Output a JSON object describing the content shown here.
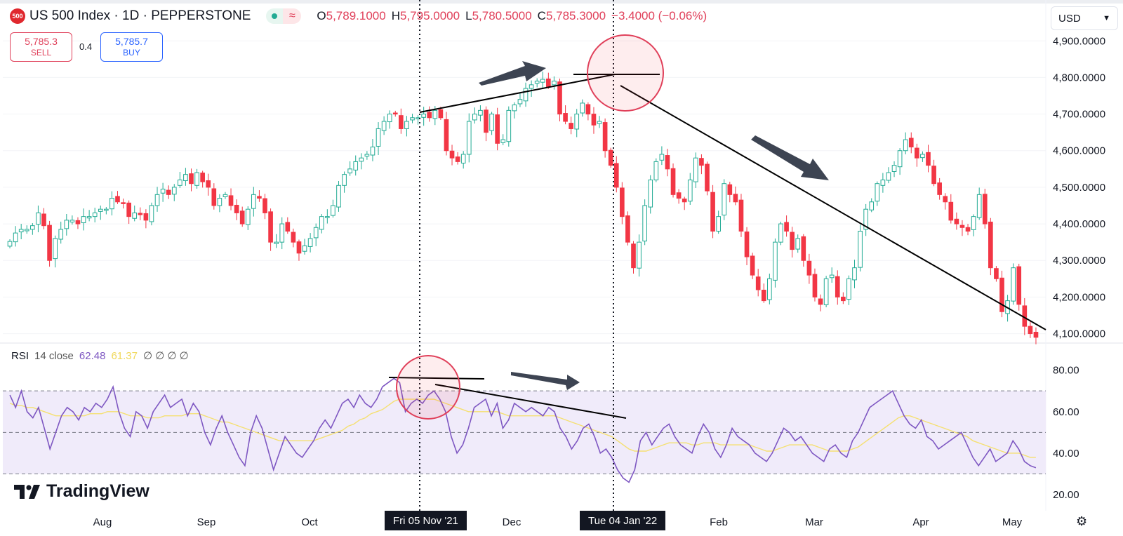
{
  "header": {
    "logo_text": "500",
    "title": "US 500 Index · 1D · PEPPERSTONE",
    "ohlc": [
      {
        "k": "O",
        "v": "5,789.1000"
      },
      {
        "k": "H",
        "v": "5,795.0000"
      },
      {
        "k": "L",
        "v": "5,780.5000"
      },
      {
        "k": "C",
        "v": "5,785.3000"
      }
    ],
    "change": "−3.4000 (−0.06%)",
    "flag_icon": "≈"
  },
  "trade": {
    "sell_price": "5,785.3",
    "sell_label": "SELL",
    "spread": "0.4",
    "buy_price": "5,785.7",
    "buy_label": "BUY"
  },
  "currency": {
    "label": "USD",
    "icon": "chevron-down-icon"
  },
  "rsi_legend": {
    "name": "RSI",
    "params": "14 close",
    "rsi_value": "62.48",
    "ma_value": "61.37",
    "empty": "∅ ∅ ∅ ∅"
  },
  "brand": {
    "text": "TradingView"
  },
  "x_labels": [
    "Aug",
    "Sep",
    "Oct",
    "Dec",
    "Feb",
    "Mar",
    "Apr",
    "May"
  ],
  "crosshair_labels": [
    "Fri 05 Nov '21",
    "Tue 04 Jan '22"
  ],
  "colors": {
    "up": "#22ab94",
    "down": "#f23645",
    "rsi": "#7e57c2",
    "rsi_ma": "#f5e071",
    "band": "#f0ebfa"
  },
  "chart_data": [
    {
      "type": "candlestick",
      "title": "US 500 Index · 1D · PEPPERSTONE",
      "ylim": [
        4080,
        4935
      ],
      "y_ticks": [
        "4,900.0000",
        "4,800.0000",
        "4,700.0000",
        "4,600.0000",
        "4,500.0000",
        "4,400.0000",
        "4,300.0000",
        "4,200.0000",
        "4,100.0000"
      ],
      "closes_approx": [
        4352,
        4375,
        4385,
        4385,
        4395,
        4430,
        4395,
        4300,
        4360,
        4385,
        4410,
        4410,
        4400,
        4420,
        4420,
        4430,
        4440,
        4440,
        4470,
        4460,
        4455,
        4420,
        4430,
        4425,
        4410,
        4450,
        4480,
        4495,
        4480,
        4500,
        4520,
        4535,
        4510,
        4540,
        4515,
        4500,
        4450,
        4470,
        4480,
        4450,
        4430,
        4400,
        4440,
        4480,
        4470,
        4430,
        4350,
        4350,
        4400,
        4380,
        4350,
        4320,
        4340,
        4360,
        4390,
        4420,
        4420,
        4450,
        4505,
        4535,
        4550,
        4570,
        4580,
        4590,
        4610,
        4660,
        4680,
        4700,
        4700,
        4660,
        4680,
        4690,
        4690,
        4700,
        4690,
        4710,
        4690,
        4600,
        4580,
        4570,
        4590,
        4680,
        4700,
        4710,
        4650,
        4700,
        4620,
        4630,
        4710,
        4725,
        4740,
        4770,
        4780,
        4790,
        4795,
        4775,
        4790,
        4700,
        4680,
        4660,
        4700,
        4730,
        4700,
        4670,
        4680,
        4600,
        4560,
        4500,
        4420,
        4350,
        4280,
        4350,
        4450,
        4520,
        4570,
        4590,
        4550,
        4480,
        4470,
        4460,
        4520,
        4580,
        4560,
        4490,
        4380,
        4420,
        4510,
        4480,
        4460,
        4380,
        4310,
        4260,
        4220,
        4190,
        4250,
        4350,
        4400,
        4380,
        4330,
        4360,
        4300,
        4260,
        4200,
        4180,
        4250,
        4260,
        4200,
        4190,
        4250,
        4280,
        4380,
        4440,
        4460,
        4510,
        4520,
        4540,
        4560,
        4600,
        4630,
        4610,
        4580,
        4590,
        4560,
        4510,
        4480,
        4460,
        4410,
        4400,
        4390,
        4380,
        4420,
        4480,
        4400,
        4280,
        4250,
        4160,
        4190,
        4280,
        4180,
        4120,
        4100,
        4090
      ],
      "annotations": [
        "trend line higher highs",
        "descending trend line",
        "circled top 4 Jan '22"
      ]
    },
    {
      "type": "line",
      "title": "RSI 14 close",
      "ylim": [
        17,
        90
      ],
      "y_ticks": [
        "80.00",
        "60.00",
        "40.00",
        "20.00"
      ],
      "bands": [
        30,
        50,
        70
      ],
      "series": [
        {
          "name": "RSI",
          "values": [
            68,
            62,
            70,
            60,
            57,
            62,
            52,
            42,
            50,
            58,
            62,
            60,
            56,
            62,
            60,
            64,
            62,
            66,
            72,
            60,
            52,
            48,
            60,
            58,
            52,
            60,
            64,
            68,
            62,
            64,
            66,
            58,
            64,
            60,
            50,
            44,
            52,
            58,
            50,
            44,
            38,
            34,
            50,
            58,
            52,
            42,
            32,
            40,
            48,
            44,
            40,
            38,
            42,
            46,
            52,
            56,
            52,
            58,
            64,
            66,
            62,
            68,
            64,
            62,
            66,
            72,
            74,
            76,
            74,
            60,
            64,
            66,
            64,
            68,
            70,
            66,
            60,
            48,
            40,
            44,
            52,
            62,
            64,
            66,
            58,
            64,
            52,
            56,
            64,
            62,
            60,
            62,
            60,
            58,
            62,
            60,
            52,
            48,
            42,
            46,
            52,
            54,
            48,
            40,
            42,
            38,
            32,
            28,
            26,
            32,
            46,
            50,
            44,
            48,
            52,
            54,
            48,
            44,
            42,
            40,
            48,
            54,
            50,
            42,
            38,
            44,
            52,
            48,
            46,
            44,
            40,
            38,
            36,
            40,
            46,
            52,
            50,
            46,
            48,
            44,
            40,
            38,
            36,
            42,
            44,
            40,
            38,
            46,
            50,
            56,
            62,
            64,
            66,
            68,
            70,
            64,
            58,
            54,
            52,
            56,
            48,
            46,
            42,
            44,
            46,
            48,
            50,
            44,
            38,
            34,
            38,
            42,
            36,
            38,
            40,
            46,
            42,
            36,
            34,
            33
          ]
        },
        {
          "name": "MA",
          "values": [
            64,
            63,
            63,
            62,
            62,
            61,
            60,
            59,
            58,
            58,
            58,
            58,
            58,
            58,
            59,
            59,
            59,
            60,
            60,
            60,
            59,
            58,
            58,
            58,
            57,
            57,
            57,
            58,
            58,
            58,
            58,
            59,
            59,
            59,
            58,
            57,
            56,
            55,
            55,
            54,
            53,
            52,
            51,
            50,
            49,
            48,
            47,
            46,
            46,
            46,
            46,
            46,
            46,
            46,
            47,
            48,
            49,
            50,
            51,
            53,
            54,
            56,
            57,
            59,
            60,
            61,
            63,
            65,
            66,
            66,
            66,
            66,
            66,
            66,
            66,
            65,
            64,
            63,
            62,
            61,
            60,
            60,
            60,
            60,
            60,
            60,
            59,
            58,
            58,
            58,
            58,
            58,
            58,
            58,
            58,
            58,
            57,
            56,
            55,
            54,
            53,
            52,
            51,
            50,
            49,
            48,
            46,
            44,
            42,
            41,
            41,
            41,
            42,
            43,
            44,
            45,
            45,
            45,
            45,
            44,
            44,
            45,
            45,
            45,
            44,
            44,
            44,
            44,
            44,
            44,
            43,
            42,
            41,
            41,
            42,
            43,
            44,
            44,
            44,
            44,
            44,
            43,
            42,
            41,
            41,
            41,
            41,
            42,
            43,
            45,
            47,
            49,
            51,
            53,
            55,
            57,
            58,
            58,
            57,
            56,
            55,
            54,
            53,
            52,
            51,
            50,
            49,
            48,
            46,
            45,
            44,
            43,
            42,
            41,
            40,
            40,
            40,
            39,
            38,
            38
          ]
        }
      ]
    }
  ]
}
